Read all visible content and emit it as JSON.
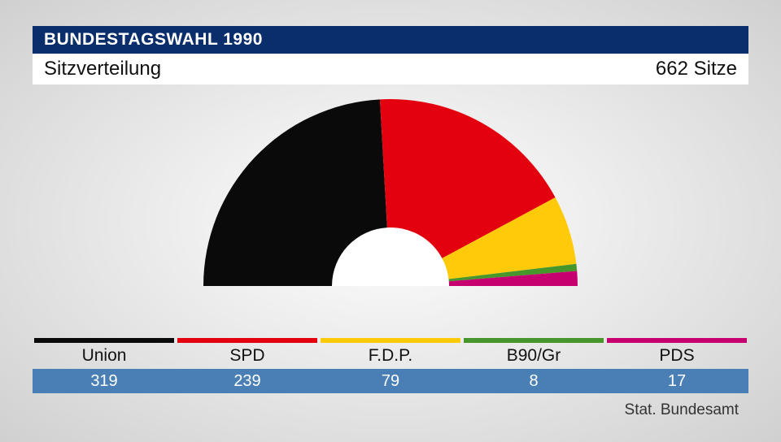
{
  "header": {
    "title": "BUNDESTAGSWAHL 1990",
    "subtitle": "Sitzverteilung",
    "total_label": "662 Sitze",
    "bar_bg": "#0a2e6b",
    "sub_bg": "#ffffff"
  },
  "chart": {
    "type": "half-donut",
    "total_seats": 662,
    "outer_radius": 230,
    "inner_radius": 72,
    "center_fill": "#ffffff",
    "parties": [
      {
        "name": "Union",
        "seats": 319,
        "color": "#0a0a0a"
      },
      {
        "name": "SPD",
        "seats": 239,
        "color": "#e3000f"
      },
      {
        "name": "F.D.P.",
        "seats": 79,
        "color": "#feca09"
      },
      {
        "name": "B90/Gr",
        "seats": 8,
        "color": "#46962b"
      },
      {
        "name": "PDS",
        "seats": 17,
        "color": "#c6006f"
      }
    ]
  },
  "legend": {
    "value_row_bg": "#4a7fb5",
    "value_color": "#ffffff",
    "label_color": "#111111",
    "label_fontsize": 21,
    "value_fontsize": 20
  },
  "source": "Stat. Bundesamt"
}
